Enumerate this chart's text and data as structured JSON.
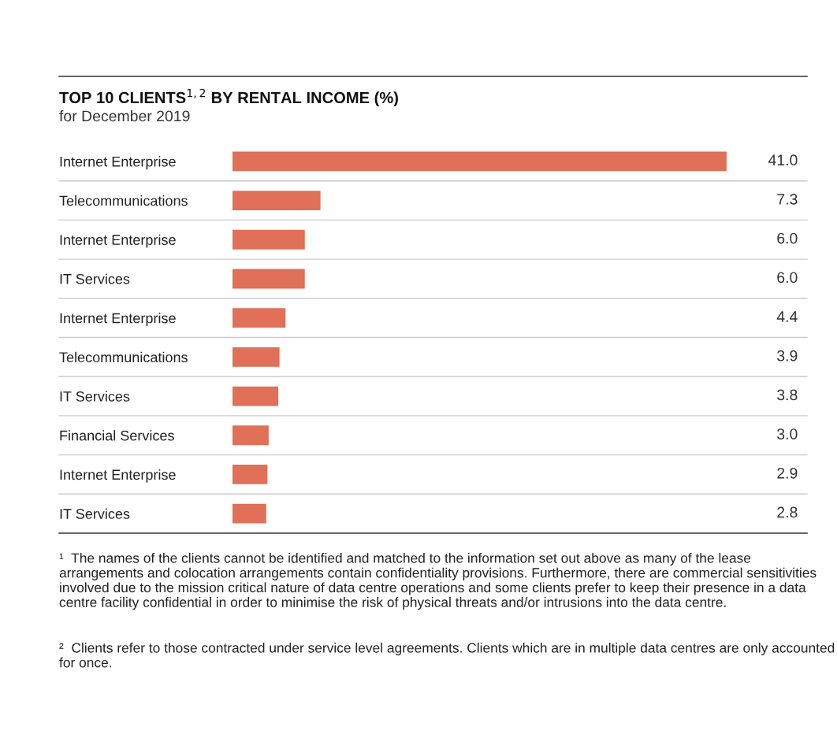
{
  "chart_data": {
    "type": "bar",
    "orientation": "horizontal",
    "title": "TOP 10 CLIENTS$^{1,2}$ BY RENTAL INCOME (%)",
    "subtitle": "for December 2019",
    "categories": [
      "Internet Enterprise",
      "Telecommunications",
      "Internet Enterprise",
      "IT Services",
      "Internet Enterprise",
      "Telecommunications",
      "IT Services",
      "Financial Services",
      "Internet Enterprise",
      "IT Services"
    ],
    "values": [
      41.0,
      7.3,
      6.0,
      6.0,
      4.4,
      3.9,
      3.8,
      3.0,
      2.9,
      2.8
    ],
    "value_labels": [
      "41.0",
      "7.3",
      "6.0",
      "6.0",
      "4.4",
      "3.9",
      "3.8",
      "3.0",
      "2.9",
      "2.8"
    ],
    "color": "#e07058",
    "grid": false,
    "legend": false,
    "annotations": [
      "¹  The names of the clients cannot be identified and matched to the information set out above as many of the lease arrangements and colocation arrangements contain confidentiality provisions. Furthermore, there are commercial sensitivities involved due to the mission critical nature of data centre operations and some clients prefer to keep their presence in a data centre facility confidential in order to minimise the risk of physical threats and/or intrusions into the data centre.",
      "²  Clients refer to those contracted under service level agreements. Clients which are in multiple data centres are only accounted for once."
    ]
  }
}
